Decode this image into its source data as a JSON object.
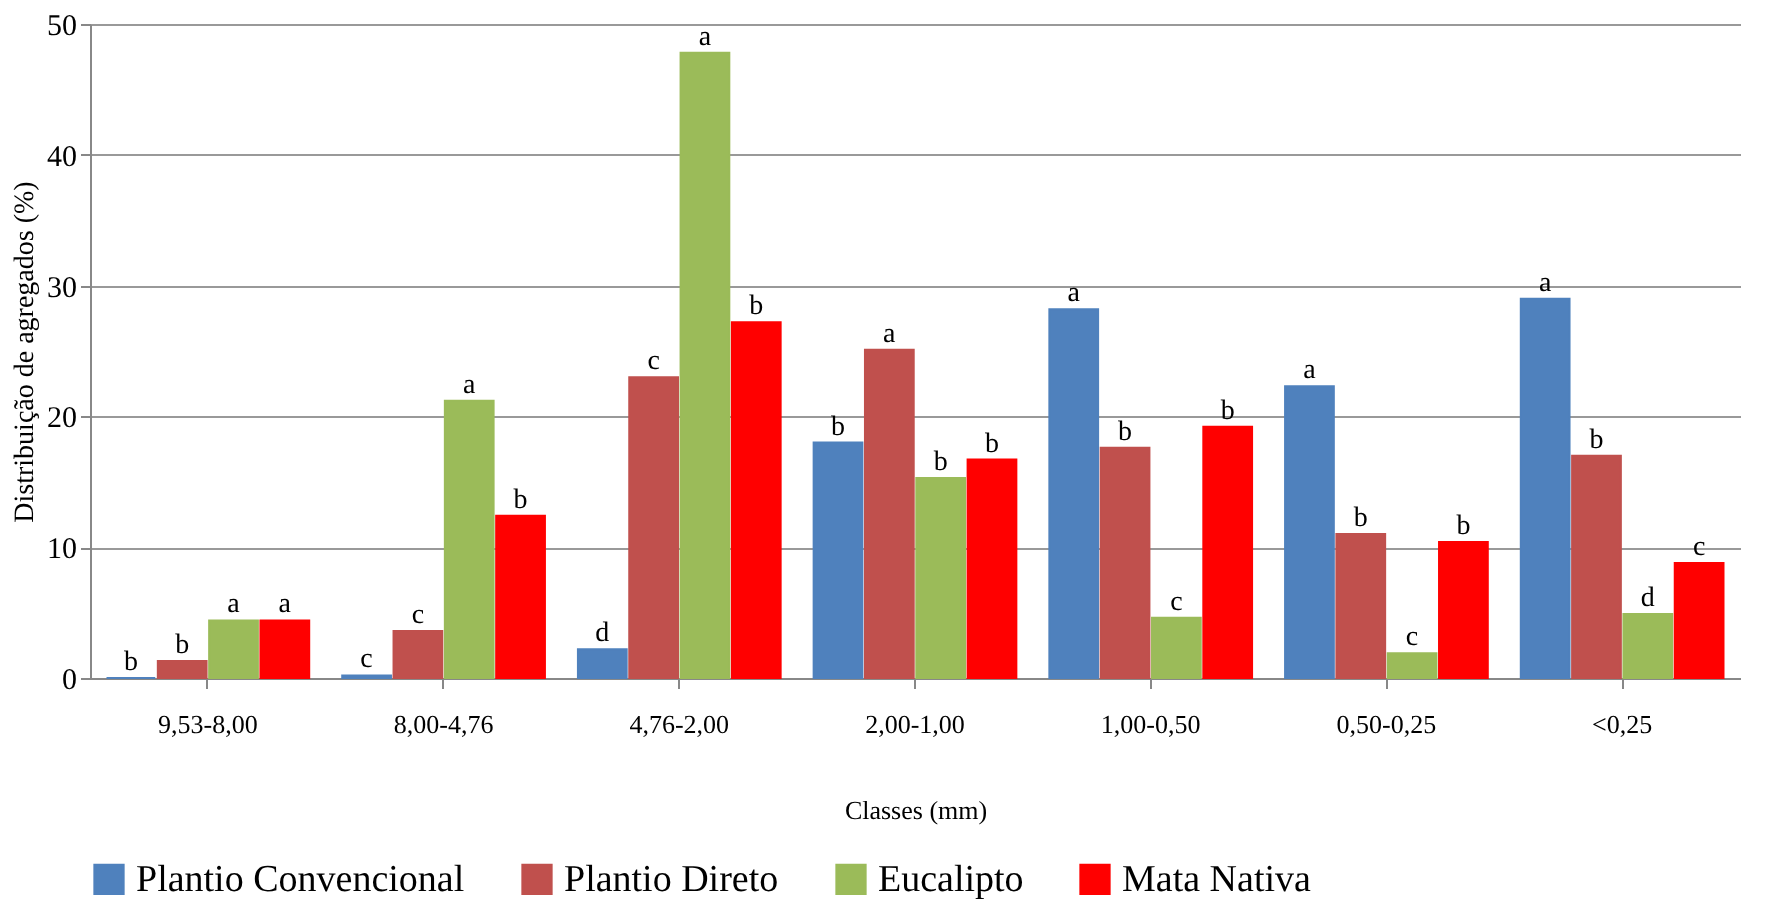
{
  "chart_data": {
    "type": "bar",
    "xlabel": "Classes (mm)",
    "ylabel": "Distribuição de agregados (%)",
    "categories": [
      "9,53-8,00",
      "8,00-4,76",
      "4,76-2,00",
      "2,00-1,00",
      "1,00-0,50",
      "0,50-0,25",
      "<0,25"
    ],
    "ylim": [
      0,
      50
    ],
    "yticks": [
      0,
      10,
      20,
      30,
      40,
      50
    ],
    "grid": "y",
    "legend": "bottom",
    "series": [
      {
        "name": "Plantio Convencional",
        "color": "#4f81bd",
        "values": [
          0,
          0.2,
          2.2,
          18,
          28.2,
          22.3,
          29
        ],
        "value_labels": [
          "b",
          "c",
          "d",
          "b",
          "a",
          "a",
          "a"
        ]
      },
      {
        "name": "Plantio Direto",
        "color": "#c0504d",
        "values": [
          1.3,
          3.6,
          23,
          25.1,
          17.6,
          11,
          17
        ],
        "value_labels": [
          "b",
          "c",
          "c",
          "a",
          "b",
          "b",
          "b"
        ]
      },
      {
        "name": "Eucalipto",
        "color": "#9bbb59",
        "values": [
          4.4,
          21.2,
          47.8,
          15.3,
          4.6,
          1.9,
          4.9
        ],
        "value_labels": [
          "a",
          "a",
          "a",
          "b",
          "c",
          "c",
          "d"
        ]
      },
      {
        "name": "Mata Nativa",
        "color": "#ff0000",
        "values": [
          4.4,
          12.4,
          27.2,
          16.7,
          19.2,
          10.4,
          8.8
        ],
        "value_labels": [
          "a",
          "b",
          "b",
          "b",
          "b",
          "b",
          "c"
        ]
      }
    ]
  }
}
